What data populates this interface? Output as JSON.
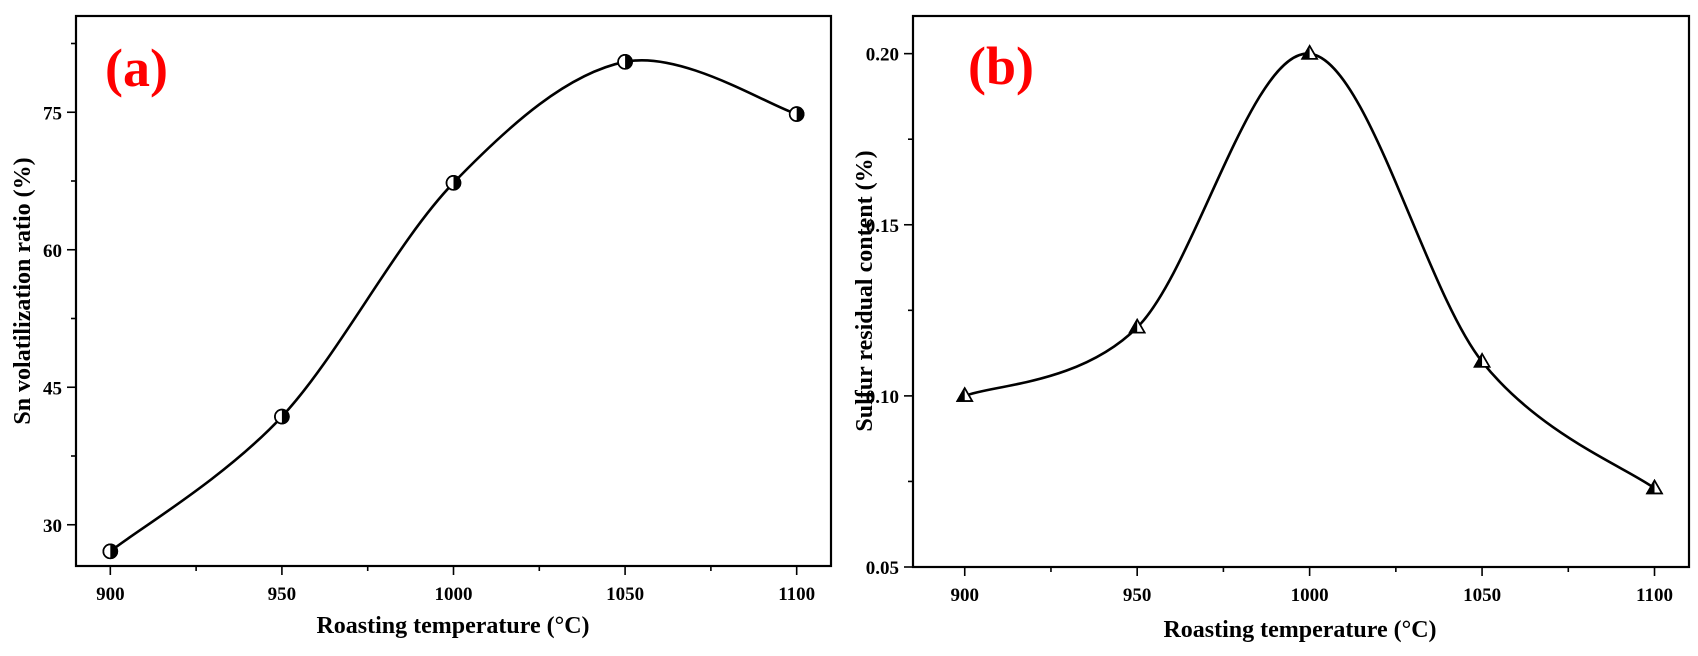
{
  "colors": {
    "panel_label": "#ff0000",
    "line": "#000000",
    "marker_fill": "#000000"
  },
  "chart_data": [
    {
      "type": "line",
      "panel_label": "(a)",
      "title": "",
      "xlabel": "Roasting temperature (°C)",
      "ylabel": "Sn volatilization ratio (%)",
      "x": [
        900,
        950,
        1000,
        1050,
        1100
      ],
      "series": [
        {
          "name": "Sn volatilization ratio",
          "values": [
            27.1,
            41.8,
            67.3,
            80.5,
            74.8
          ],
          "marker": "half-filled-circle"
        }
      ],
      "xlim": [
        890,
        1110
      ],
      "ylim": [
        25.5,
        85.5
      ],
      "xticks_major": [
        900,
        950,
        1000,
        1050,
        1100
      ],
      "xtick_labels": [
        "900",
        "950",
        "1000",
        "1050",
        "1100"
      ],
      "yticks_major": [
        30,
        45,
        60,
        75
      ],
      "ytick_labels": [
        "30",
        "45",
        "60",
        "75"
      ],
      "grid": false,
      "legend": "none"
    },
    {
      "type": "line",
      "panel_label": "(b)",
      "title": "",
      "xlabel": "Roasting temperature (°C)",
      "ylabel": "Sulfur residual content (%)",
      "x": [
        900,
        950,
        1000,
        1050,
        1100
      ],
      "series": [
        {
          "name": "Sulfur residual content",
          "values": [
            0.1,
            0.12,
            0.2,
            0.11,
            0.073
          ],
          "marker": "half-filled-triangle"
        }
      ],
      "xlim": [
        885,
        1110
      ],
      "ylim": [
        0.05,
        0.211
      ],
      "xticks_major": [
        900,
        950,
        1000,
        1050,
        1100
      ],
      "xtick_labels": [
        "900",
        "950",
        "1000",
        "1050",
        "1100"
      ],
      "yticks_major": [
        0.05,
        0.1,
        0.15,
        0.2
      ],
      "ytick_labels": [
        "0.05",
        "0.10",
        "0.15",
        "0.20"
      ],
      "grid": false,
      "legend": "none"
    }
  ]
}
